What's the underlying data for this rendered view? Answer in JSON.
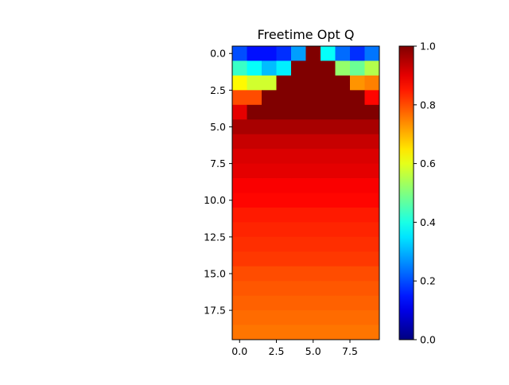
{
  "chart_data": {
    "type": "heatmap",
    "title": "Freetime Opt Q",
    "xlabel": "",
    "ylabel": "",
    "n_cols": 10,
    "n_rows": 20,
    "xlim": [
      -0.5,
      9.5
    ],
    "ylim": [
      19.5,
      -0.5
    ],
    "xticks": [
      0.0,
      2.5,
      5.0,
      7.5
    ],
    "xtick_labels": [
      "0.0",
      "2.5",
      "5.0",
      "7.5"
    ],
    "yticks": [
      0.0,
      2.5,
      5.0,
      7.5,
      10.0,
      12.5,
      15.0,
      17.5
    ],
    "ytick_labels": [
      "0.0",
      "2.5",
      "5.0",
      "7.5",
      "10.0",
      "12.5",
      "15.0",
      "17.5"
    ],
    "colormap": "jet",
    "vmin": 0.0,
    "vmax": 1.0,
    "colorbar_ticks": [
      0.0,
      0.2,
      0.4,
      0.6,
      0.8,
      1.0
    ],
    "colorbar_tick_labels": [
      "0.0",
      "0.2",
      "0.4",
      "0.6",
      "0.8",
      "1.0"
    ],
    "grid": false,
    "values": [
      [
        0.2,
        0.14,
        0.14,
        0.17,
        0.28,
        1.0,
        0.38,
        0.23,
        0.17,
        0.24
      ],
      [
        0.43,
        0.38,
        0.31,
        0.36,
        1.0,
        1.0,
        1.0,
        0.52,
        0.48,
        0.55
      ],
      [
        0.63,
        0.58,
        0.58,
        1.0,
        1.0,
        1.0,
        1.0,
        1.0,
        0.73,
        0.75
      ],
      [
        0.8,
        0.8,
        1.0,
        1.0,
        1.0,
        1.0,
        1.0,
        1.0,
        1.0,
        0.87
      ],
      [
        0.9,
        1.0,
        1.0,
        1.0,
        1.0,
        1.0,
        1.0,
        1.0,
        1.0,
        1.0
      ],
      [
        0.96,
        0.96,
        0.96,
        0.96,
        0.96,
        0.96,
        0.96,
        0.96,
        0.96,
        0.96
      ],
      [
        0.93,
        0.93,
        0.93,
        0.93,
        0.93,
        0.93,
        0.93,
        0.93,
        0.93,
        0.93
      ],
      [
        0.91,
        0.91,
        0.91,
        0.91,
        0.91,
        0.91,
        0.91,
        0.91,
        0.91,
        0.91
      ],
      [
        0.9,
        0.9,
        0.9,
        0.9,
        0.9,
        0.9,
        0.9,
        0.9,
        0.9,
        0.9
      ],
      [
        0.88,
        0.88,
        0.88,
        0.88,
        0.88,
        0.88,
        0.88,
        0.88,
        0.88,
        0.88
      ],
      [
        0.87,
        0.87,
        0.87,
        0.87,
        0.87,
        0.87,
        0.87,
        0.87,
        0.87,
        0.87
      ],
      [
        0.85,
        0.85,
        0.85,
        0.85,
        0.85,
        0.85,
        0.85,
        0.85,
        0.85,
        0.85
      ],
      [
        0.84,
        0.84,
        0.84,
        0.84,
        0.84,
        0.84,
        0.84,
        0.84,
        0.84,
        0.84
      ],
      [
        0.83,
        0.83,
        0.83,
        0.83,
        0.83,
        0.83,
        0.83,
        0.83,
        0.83,
        0.83
      ],
      [
        0.82,
        0.82,
        0.82,
        0.82,
        0.82,
        0.82,
        0.82,
        0.82,
        0.82,
        0.82
      ],
      [
        0.8,
        0.8,
        0.8,
        0.8,
        0.8,
        0.8,
        0.8,
        0.8,
        0.8,
        0.8
      ],
      [
        0.79,
        0.79,
        0.79,
        0.79,
        0.79,
        0.79,
        0.79,
        0.79,
        0.79,
        0.79
      ],
      [
        0.78,
        0.78,
        0.78,
        0.78,
        0.78,
        0.78,
        0.78,
        0.78,
        0.78,
        0.78
      ],
      [
        0.77,
        0.77,
        0.77,
        0.77,
        0.77,
        0.77,
        0.77,
        0.77,
        0.77,
        0.77
      ],
      [
        0.76,
        0.76,
        0.76,
        0.76,
        0.76,
        0.76,
        0.76,
        0.76,
        0.76,
        0.76
      ]
    ]
  }
}
